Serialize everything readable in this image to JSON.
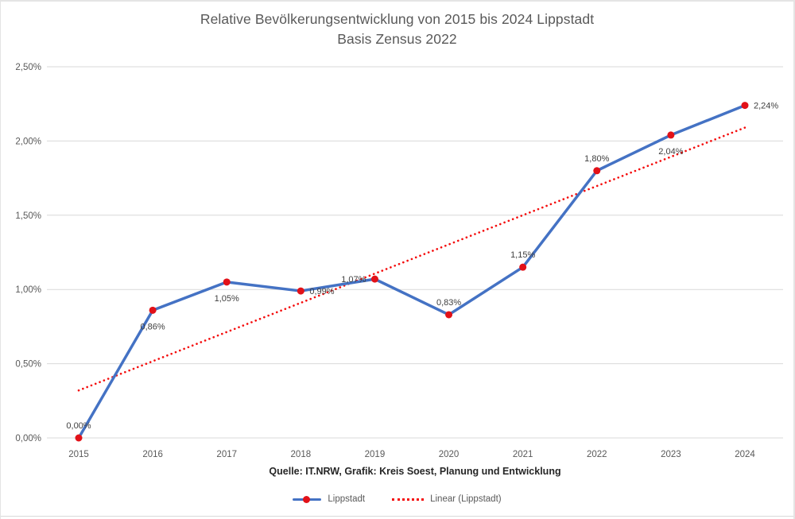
{
  "page": {
    "title_line1": "Relative Bevölkerungsentwicklung von 2015 bis 2024 Lippstadt",
    "title_line2": "Basis Zensus 2022",
    "source_note": "Quelle: IT.NRW, Grafik: Kreis Soest, Planung und Entwicklung"
  },
  "legend": {
    "series_label": "Lippstadt",
    "trend_label": "Linear (Lippstadt)"
  },
  "chart_data": {
    "type": "line",
    "title": "Relative Bevölkerungsentwicklung von 2015 bis 2024 Lippstadt",
    "subtitle": "Basis Zensus 2022",
    "xlabel": "",
    "ylabel": "",
    "categories": [
      "2015",
      "2016",
      "2017",
      "2018",
      "2019",
      "2020",
      "2021",
      "2022",
      "2023",
      "2024"
    ],
    "series": [
      {
        "name": "Lippstadt",
        "values": [
          0.0,
          0.86,
          1.05,
          0.99,
          1.07,
          0.83,
          1.15,
          1.8,
          2.04,
          2.24
        ],
        "labels": [
          "0,00%",
          "0,86%",
          "1,05%",
          "0,99%",
          "1,07%",
          "0,83%",
          "1,15%",
          "1,80%",
          "2,04%",
          "2,24%"
        ],
        "label_positions": [
          "above",
          "below",
          "below",
          "right",
          "left",
          "above",
          "above",
          "above",
          "below",
          "right"
        ]
      }
    ],
    "trendline": {
      "name": "Linear (Lippstadt)",
      "style": "dotted",
      "start_value": 0.32,
      "end_value": 2.09
    },
    "y_ticks": [
      "0,00%",
      "0,50%",
      "1,00%",
      "1,50%",
      "2,00%",
      "2,50%"
    ],
    "y_tick_values": [
      0,
      0.5,
      1.0,
      1.5,
      2.0,
      2.5
    ],
    "ylim": [
      0,
      2.5
    ],
    "grid": true,
    "legend_position": "bottom",
    "colors": {
      "series": "#4472C4",
      "marker": "#E21118",
      "trend": "#F40B0B",
      "grid": "#D9D9D9",
      "axis_text": "#595959",
      "label_text": "#404040"
    }
  }
}
